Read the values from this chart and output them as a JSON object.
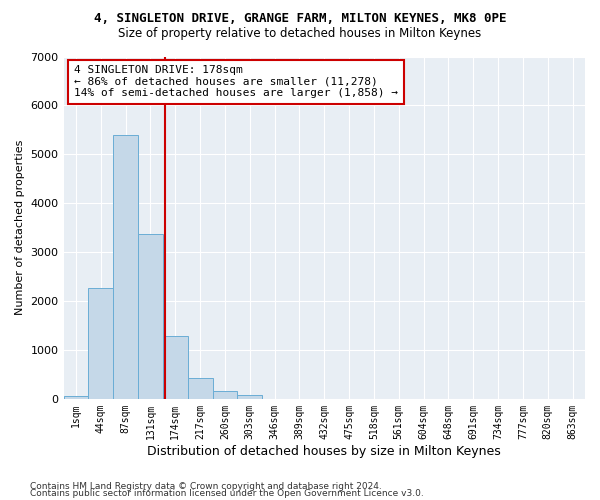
{
  "title": "4, SINGLETON DRIVE, GRANGE FARM, MILTON KEYNES, MK8 0PE",
  "subtitle": "Size of property relative to detached houses in Milton Keynes",
  "xlabel": "Distribution of detached houses by size in Milton Keynes",
  "ylabel": "Number of detached properties",
  "footnote1": "Contains HM Land Registry data © Crown copyright and database right 2024.",
  "footnote2": "Contains public sector information licensed under the Open Government Licence v3.0.",
  "bin_labels": [
    "1sqm",
    "44sqm",
    "87sqm",
    "131sqm",
    "174sqm",
    "217sqm",
    "260sqm",
    "303sqm",
    "346sqm",
    "389sqm",
    "432sqm",
    "475sqm",
    "518sqm",
    "561sqm",
    "604sqm",
    "648sqm",
    "691sqm",
    "734sqm",
    "777sqm",
    "820sqm",
    "863sqm"
  ],
  "bar_values": [
    50,
    2270,
    5400,
    3380,
    1280,
    430,
    150,
    80,
    0,
    0,
    0,
    0,
    0,
    0,
    0,
    0,
    0,
    0,
    0,
    0,
    0
  ],
  "bar_color": "#c5d8e8",
  "bar_edge_color": "#6aadd5",
  "bg_color": "#e8eef4",
  "grid_color": "#ffffff",
  "vline_pos": 3.6,
  "vline_color": "#cc0000",
  "annotation_text": "4 SINGLETON DRIVE: 178sqm\n← 86% of detached houses are smaller (11,278)\n14% of semi-detached houses are larger (1,858) →",
  "annotation_box_color": "#cc0000",
  "ylim": [
    0,
    7000
  ],
  "yticks": [
    0,
    1000,
    2000,
    3000,
    4000,
    5000,
    6000,
    7000
  ]
}
